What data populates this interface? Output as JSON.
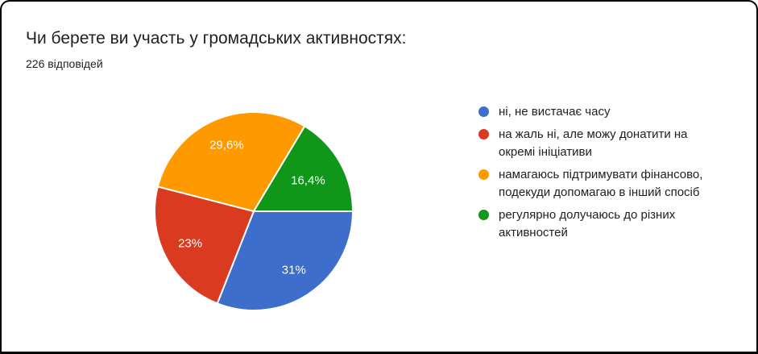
{
  "header": {
    "title": "Чи берете ви участь у громадських активностях:",
    "responses_count": "226 відповідей"
  },
  "chart_data": {
    "type": "pie",
    "title": "Чи берете ви участь у громадських активностях:",
    "subtitle": "226 відповідей",
    "legend_position": "right",
    "start_angle_deg": 90,
    "direction": "clockwise",
    "label_color": "#ffffff",
    "slice_border_color": "#ffffff",
    "slices": [
      {
        "label": "ні, не вистачає часу",
        "percent": 31,
        "percent_label": "31%",
        "color": "#3d6ecb"
      },
      {
        "label": "на жаль ні, але можу донатити на окремі ініціативи",
        "percent": 23,
        "percent_label": "23%",
        "color": "#da3a20"
      },
      {
        "label": "намагаюсь підтримувати фінансово, подекуди допомагаю в інший спосіб",
        "percent": 29.6,
        "percent_label": "29,6%",
        "color": "#ff9900"
      },
      {
        "label": "регулярно долучаюсь до різних активностей",
        "percent": 16.4,
        "percent_label": "16,4%",
        "color": "#109618"
      }
    ]
  }
}
